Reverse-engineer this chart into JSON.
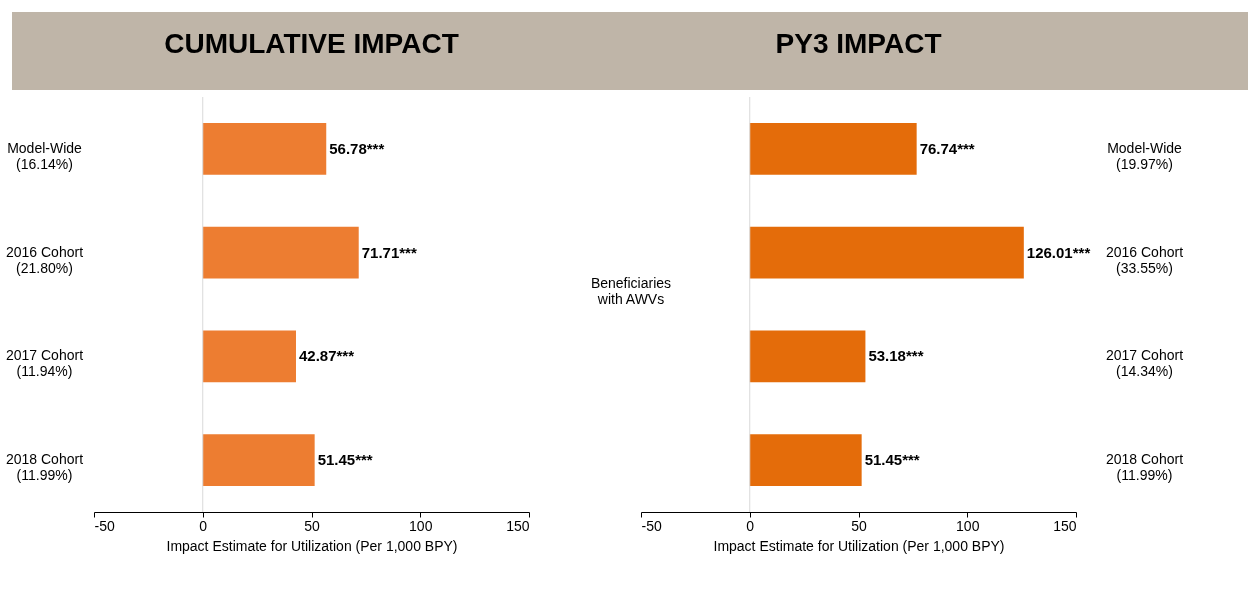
{
  "chart_data": [
    {
      "type": "bar",
      "orientation": "horizontal",
      "title": "CUMULATIVE IMPACT",
      "xlabel": "Impact Estimate for Utilization (Per 1,000 BPY)",
      "categories": [
        "Model-Wide\n(16.14%)",
        "2016 Cohort\n(21.80%)",
        "2017 Cohort\n(11.94%)",
        "2018 Cohort\n(11.99%)"
      ],
      "values": [
        56.78,
        71.71,
        42.87,
        51.45
      ],
      "value_labels": [
        "56.78***",
        "71.71***",
        "42.87***",
        "51.45***"
      ],
      "color": "#ed7d31",
      "xlim": [
        -50,
        150
      ],
      "xticks": [
        -50,
        0,
        50,
        100,
        150
      ],
      "ref_lines": [
        {
          "axis": "x",
          "value": 0,
          "color": "#d9d9d9"
        }
      ]
    },
    {
      "type": "bar",
      "orientation": "horizontal",
      "title": "PY3 IMPACT",
      "xlabel": "Impact Estimate for Utilization (Per 1,000 BPY)",
      "categories": [
        "Model-Wide\n(19.97%)",
        "2016 Cohort\n(33.55%)",
        "2017 Cohort\n(14.34%)",
        "2018 Cohort\n(11.99%)"
      ],
      "values": [
        76.74,
        126.01,
        53.18,
        51.45
      ],
      "value_labels": [
        "76.74***",
        "126.01***",
        "53.18***",
        "51.45***"
      ],
      "color": "#e46c0a",
      "xlim": [
        -50,
        150
      ],
      "xticks": [
        -50,
        0,
        50,
        100,
        150
      ],
      "ref_lines": [
        {
          "axis": "x",
          "value": 0,
          "color": "#d9d9d9"
        }
      ],
      "annotations": [
        "Beneficiaries\nwith AWVs"
      ]
    }
  ]
}
